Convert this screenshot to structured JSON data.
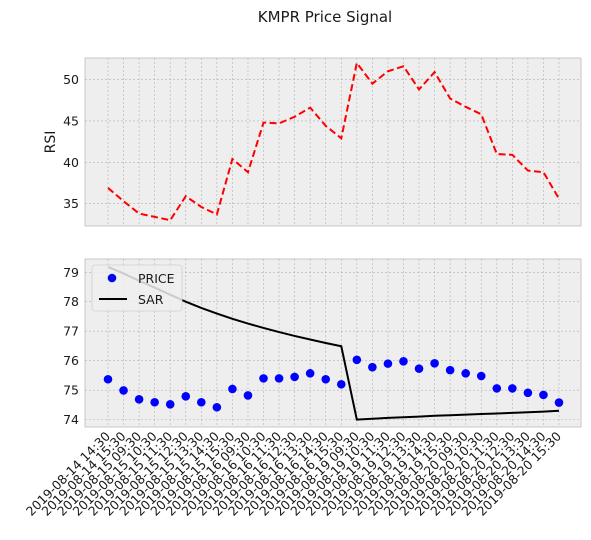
{
  "title": "KMPR Price Signal",
  "chart_data": [
    {
      "type": "line",
      "panel": "rsi",
      "ylabel": "RSI",
      "ylim": [
        32.3,
        52.6
      ],
      "yticks": [
        35,
        40,
        45,
        50
      ],
      "grid": true,
      "series": [
        {
          "color": "#ff0000",
          "style": "dashed",
          "values": [
            36.9,
            35.3,
            33.8,
            33.4,
            33.0,
            35.9,
            34.6,
            33.7,
            40.4,
            38.8,
            44.8,
            44.7,
            45.5,
            46.6,
            44.4,
            42.9,
            52.0,
            49.5,
            51.0,
            51.6,
            48.8,
            50.9,
            47.7,
            46.7,
            45.8,
            41.0,
            40.9,
            39.0,
            38.8,
            35.6
          ]
        }
      ]
    },
    {
      "type": "line",
      "panel": "price",
      "ylim": [
        73.75,
        79.45
      ],
      "yticks": [
        74,
        75,
        76,
        77,
        78,
        79
      ],
      "grid": true,
      "legend": "top-left",
      "series": [
        {
          "name": "PRICE",
          "marker": "circle",
          "color": "#0000ff",
          "values": [
            75.37,
            74.99,
            74.69,
            74.59,
            74.52,
            74.79,
            74.59,
            74.42,
            75.04,
            74.82,
            75.4,
            75.4,
            75.45,
            75.57,
            75.37,
            75.2,
            76.03,
            75.78,
            75.9,
            75.98,
            75.73,
            75.91,
            75.68,
            75.57,
            75.48,
            75.06,
            75.06,
            74.91,
            74.84,
            74.58
          ]
        },
        {
          "name": "SAR",
          "color": "#000000",
          "style": "solid",
          "values": [
            79.18,
            78.96,
            78.71,
            78.48,
            78.24,
            78.0,
            77.79,
            77.6,
            77.42,
            77.26,
            77.11,
            76.97,
            76.84,
            76.72,
            76.6,
            76.49,
            74.0,
            74.03,
            74.06,
            74.08,
            74.1,
            74.13,
            74.15,
            74.17,
            74.19,
            74.21,
            74.23,
            74.25,
            74.27,
            74.3
          ]
        }
      ]
    }
  ],
  "x_tick_labels": [
    "2019-08-14 14:30",
    "2019-08-14 15:30",
    "2019-08-15 09:30",
    "2019-08-15 10:30",
    "2019-08-15 11:30",
    "2019-08-15 12:30",
    "2019-08-15 13:30",
    "2019-08-15 14:30",
    "2019-08-15 15:30",
    "2019-08-16 09:30",
    "2019-08-16 10:30",
    "2019-08-16 11:30",
    "2019-08-16 12:30",
    "2019-08-16 13:30",
    "2019-08-16 14:30",
    "2019-08-16 15:30",
    "2019-08-19 09:30",
    "2019-08-19 10:30",
    "2019-08-19 11:30",
    "2019-08-19 12:30",
    "2019-08-19 13:30",
    "2019-08-19 14:30",
    "2019-08-19 15:30",
    "2019-08-20 09:30",
    "2019-08-20 10:30",
    "2019-08-20 11:30",
    "2019-08-20 12:30",
    "2019-08-20 13:30",
    "2019-08-20 14:30",
    "2019-08-20 15:30"
  ]
}
